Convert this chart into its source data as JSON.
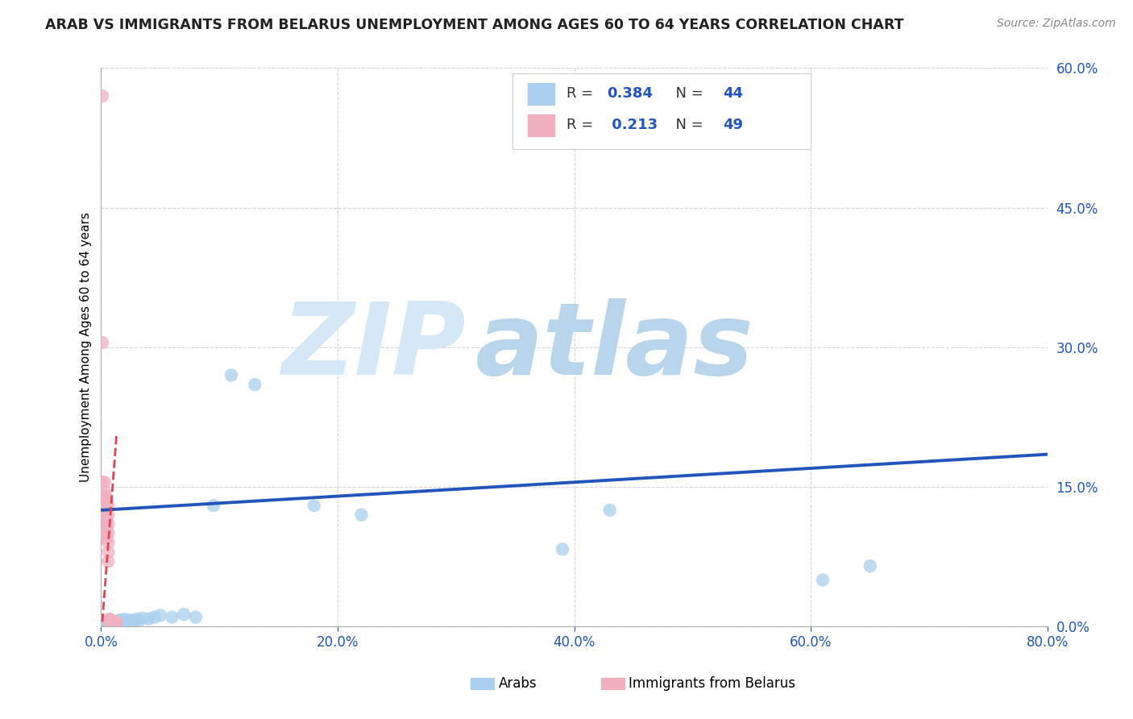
{
  "title": "ARAB VS IMMIGRANTS FROM BELARUS UNEMPLOYMENT AMONG AGES 60 TO 64 YEARS CORRELATION CHART",
  "source": "Source: ZipAtlas.com",
  "ylabel": "Unemployment Among Ages 60 to 64 years",
  "xlim": [
    0.0,
    0.8
  ],
  "ylim": [
    0.0,
    0.6
  ],
  "xticks": [
    0.0,
    0.2,
    0.4,
    0.6,
    0.8
  ],
  "xtick_labels": [
    "0.0%",
    "20.0%",
    "40.0%",
    "60.0%",
    "80.0%"
  ],
  "ytick_labels": [
    "0.0%",
    "15.0%",
    "30.0%",
    "45.0%",
    "60.0%"
  ],
  "yticks": [
    0.0,
    0.15,
    0.3,
    0.45,
    0.6
  ],
  "legend_R_arab": "0.384",
  "legend_N_arab": "44",
  "legend_R_belarus": "0.213",
  "legend_N_belarus": "49",
  "arab_color": "#aacfee",
  "belarus_color": "#f0b0c0",
  "trend_arab_color": "#2255bb",
  "trend_belarus_color": "#dd4455",
  "watermark_zip_color": "#d5e8f5",
  "watermark_atlas_color": "#b8d5ec",
  "arab_x": [
    0.001,
    0.001,
    0.002,
    0.002,
    0.003,
    0.003,
    0.004,
    0.004,
    0.005,
    0.005,
    0.006,
    0.006,
    0.007,
    0.008,
    0.009,
    0.01,
    0.011,
    0.012,
    0.013,
    0.015,
    0.016,
    0.018,
    0.02,
    0.022,
    0.025,
    0.028,
    0.03,
    0.032,
    0.035,
    0.04,
    0.045,
    0.05,
    0.06,
    0.07,
    0.08,
    0.095,
    0.11,
    0.13,
    0.18,
    0.22,
    0.39,
    0.43,
    0.61,
    0.65
  ],
  "arab_y": [
    0.003,
    0.005,
    0.003,
    0.006,
    0.002,
    0.004,
    0.003,
    0.005,
    0.002,
    0.004,
    0.003,
    0.005,
    0.004,
    0.003,
    0.005,
    0.006,
    0.004,
    0.005,
    0.004,
    0.006,
    0.007,
    0.005,
    0.008,
    0.006,
    0.007,
    0.006,
    0.008,
    0.006,
    0.009,
    0.008,
    0.01,
    0.012,
    0.01,
    0.013,
    0.01,
    0.13,
    0.27,
    0.26,
    0.13,
    0.12,
    0.083,
    0.125,
    0.05,
    0.065
  ],
  "belarus_x": [
    0.001,
    0.001,
    0.001,
    0.001,
    0.002,
    0.002,
    0.002,
    0.002,
    0.003,
    0.003,
    0.003,
    0.003,
    0.003,
    0.004,
    0.004,
    0.004,
    0.005,
    0.005,
    0.005,
    0.005,
    0.005,
    0.006,
    0.006,
    0.006,
    0.006,
    0.006,
    0.006,
    0.006,
    0.007,
    0.007,
    0.007,
    0.007,
    0.007,
    0.008,
    0.008,
    0.008,
    0.008,
    0.009,
    0.009,
    0.009,
    0.009,
    0.01,
    0.01,
    0.01,
    0.01,
    0.011,
    0.011,
    0.012,
    0.013
  ],
  "belarus_y": [
    0.57,
    0.305,
    0.155,
    0.125,
    0.14,
    0.13,
    0.115,
    0.1,
    0.155,
    0.145,
    0.13,
    0.125,
    0.1,
    0.14,
    0.12,
    0.105,
    0.135,
    0.125,
    0.115,
    0.105,
    0.095,
    0.13,
    0.12,
    0.11,
    0.1,
    0.09,
    0.08,
    0.07,
    0.005,
    0.008,
    0.006,
    0.007,
    0.005,
    0.006,
    0.004,
    0.007,
    0.005,
    0.006,
    0.004,
    0.005,
    0.004,
    0.006,
    0.004,
    0.005,
    0.004,
    0.005,
    0.004,
    0.005,
    0.004
  ],
  "trend_arab_x0": 0.0,
  "trend_arab_y0": 0.125,
  "trend_arab_x1": 0.8,
  "trend_arab_y1": 0.185,
  "trend_bel_x0": 0.001,
  "trend_bel_y0": 0.005,
  "trend_bel_x1": 0.013,
  "trend_bel_y1": 0.205
}
